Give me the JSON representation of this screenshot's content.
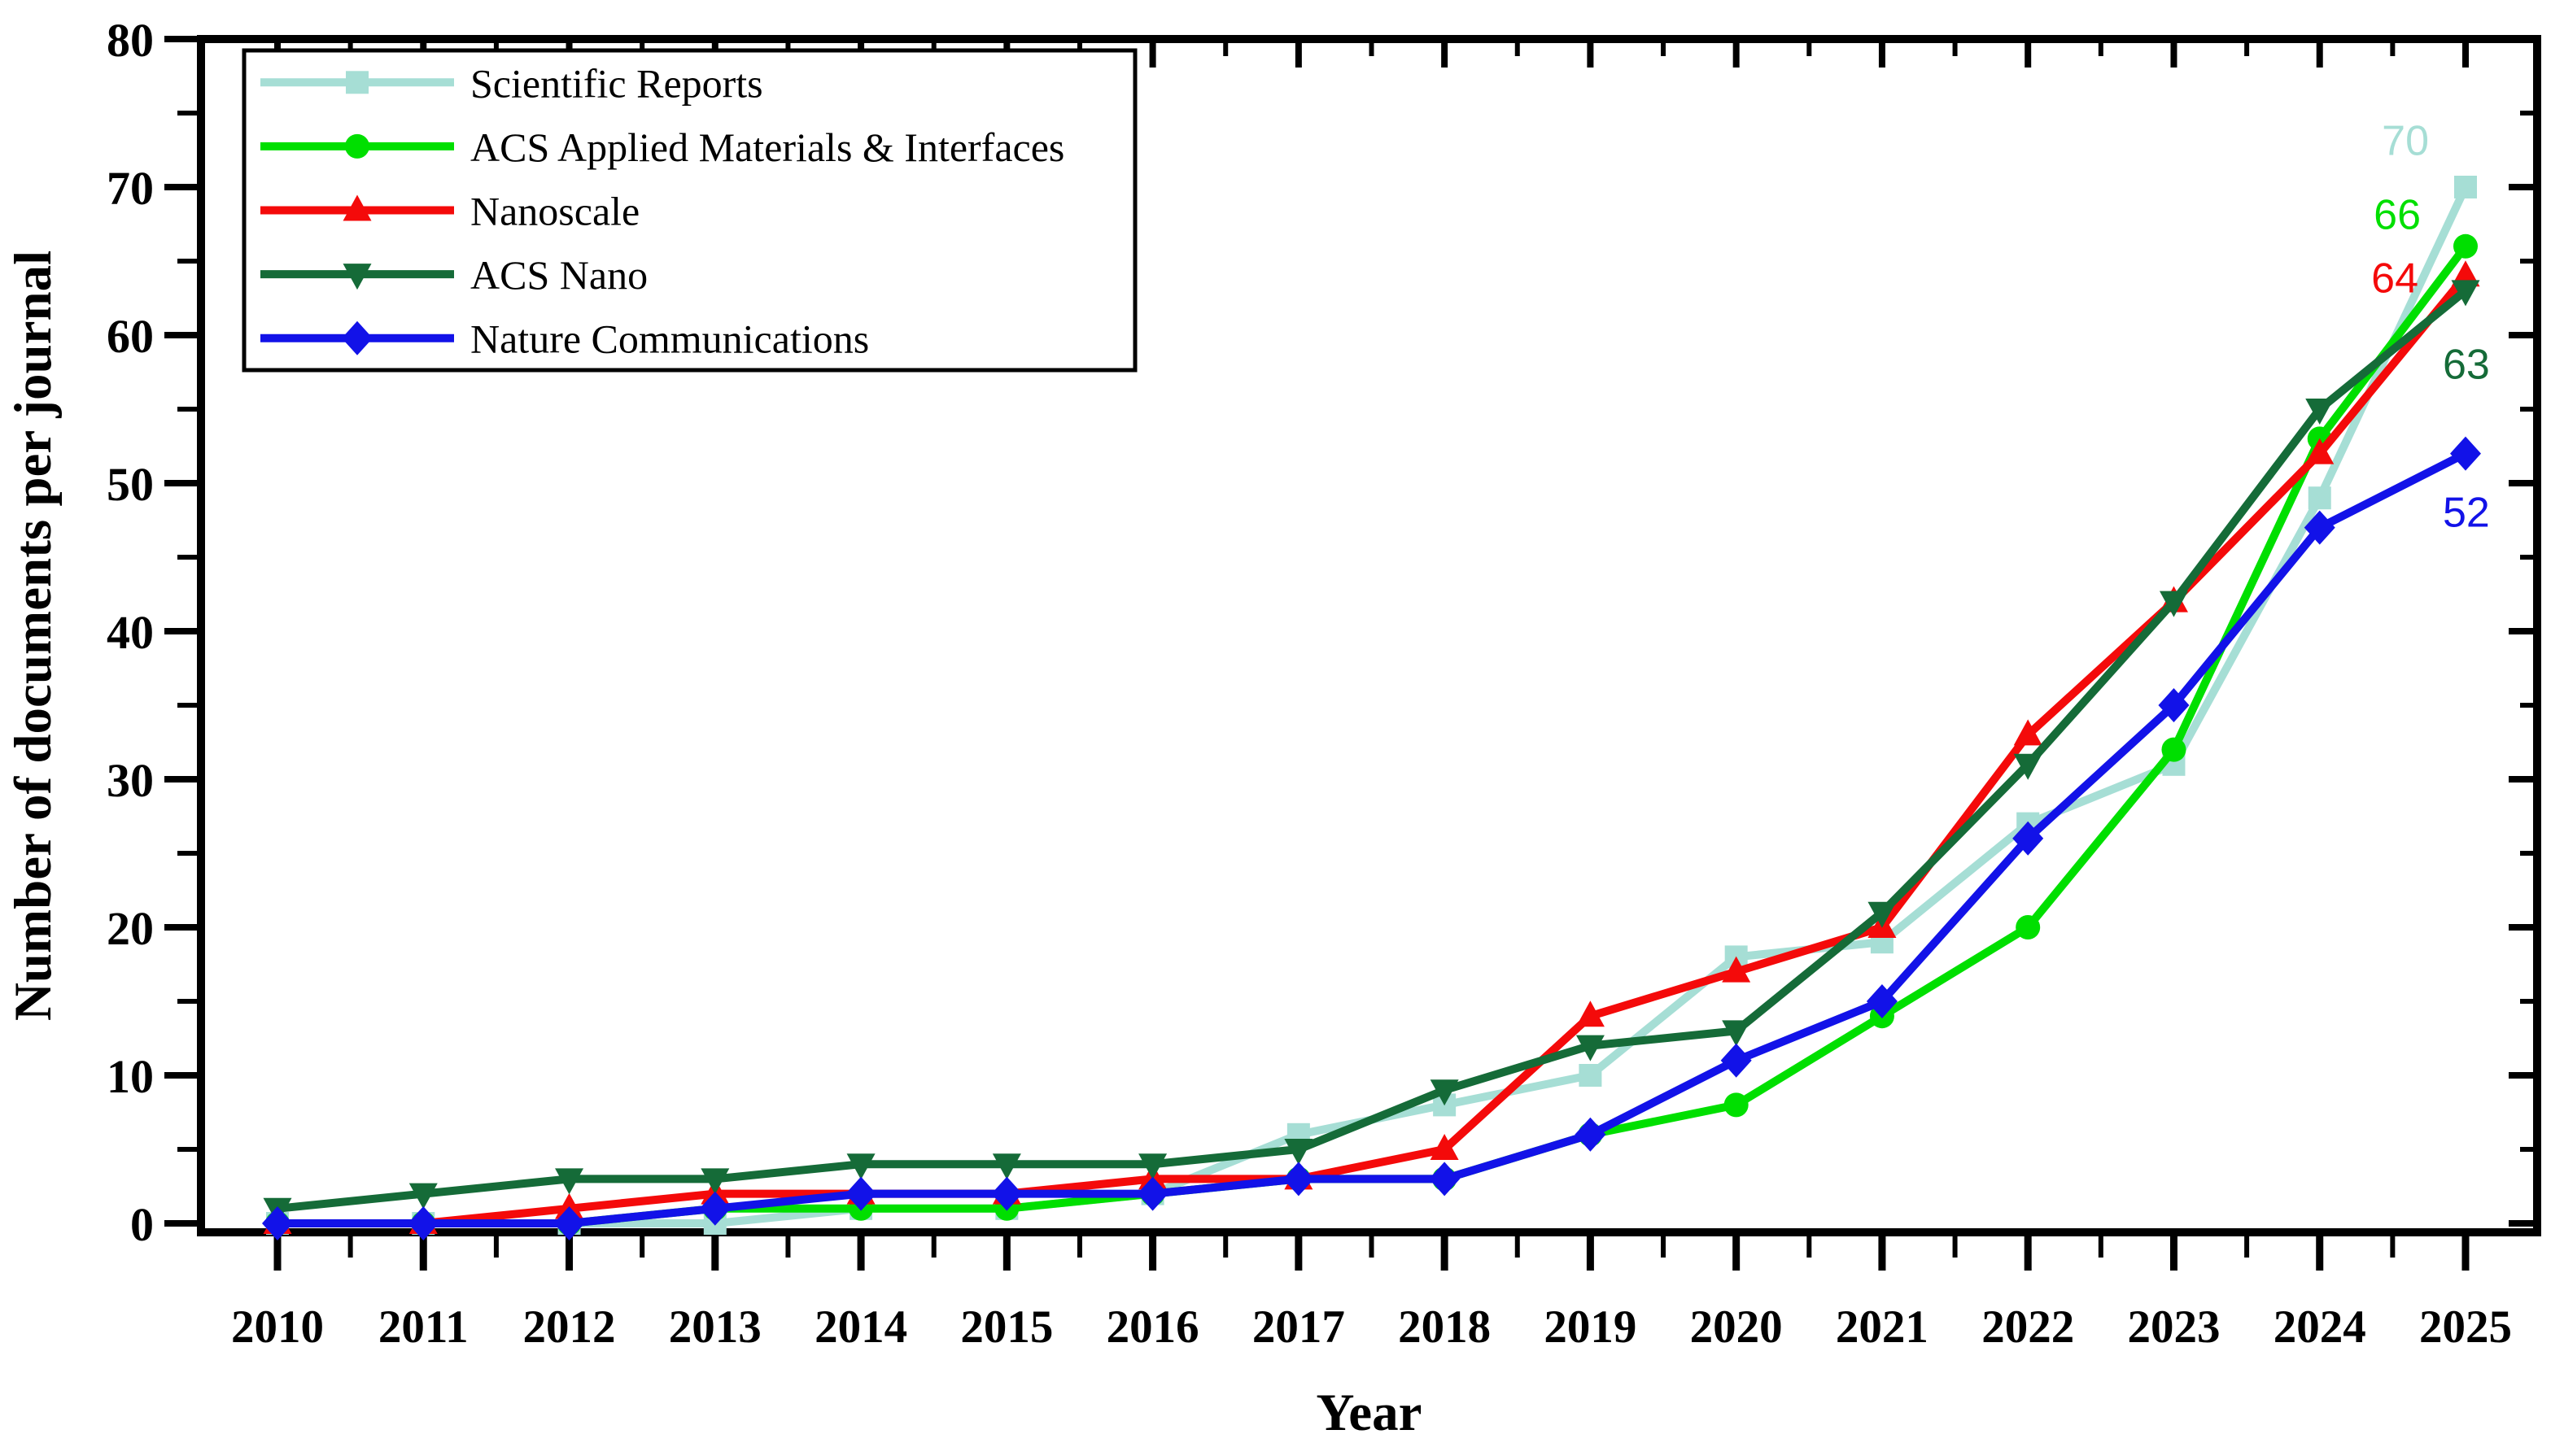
{
  "chart_data": {
    "type": "line",
    "title": "",
    "xlabel": "Year",
    "ylabel": "Number of documents per journal",
    "x": [
      2010,
      2011,
      2012,
      2013,
      2014,
      2015,
      2016,
      2017,
      2018,
      2019,
      2020,
      2021,
      2022,
      2023,
      2024,
      2025
    ],
    "xlim": [
      2010,
      2025
    ],
    "ylim": [
      0,
      80
    ],
    "y_major_ticks": [
      0,
      10,
      20,
      30,
      40,
      50,
      60,
      70,
      80
    ],
    "y_minor_step": 5,
    "grid": "off",
    "legend_position": "top-left",
    "series": [
      {
        "name": "Scientific Reports",
        "color": "#A6DED5",
        "marker": "square",
        "values": [
          0,
          0,
          0,
          0,
          1,
          1,
          2,
          6,
          8,
          10,
          18,
          19,
          27,
          31,
          49,
          70
        ],
        "end_label": "70"
      },
      {
        "name": "ACS Applied Materials & Interfaces",
        "color": "#00DF00",
        "marker": "circle",
        "values": [
          0,
          0,
          0,
          1,
          1,
          1,
          2,
          3,
          3,
          6,
          8,
          14,
          20,
          32,
          53,
          66
        ],
        "end_label": "66"
      },
      {
        "name": "Nanoscale",
        "color": "#F40A0A",
        "marker": "triangle-up",
        "values": [
          0,
          0,
          1,
          2,
          2,
          2,
          3,
          3,
          5,
          14,
          17,
          20,
          33,
          42,
          52,
          64
        ],
        "end_label": "64"
      },
      {
        "name": "ACS Nano",
        "color": "#156B38",
        "marker": "triangle-down",
        "values": [
          1,
          2,
          3,
          3,
          4,
          4,
          4,
          5,
          9,
          12,
          13,
          21,
          31,
          42,
          55,
          63
        ],
        "end_label": "63"
      },
      {
        "name": "Nature Communications",
        "color": "#1212E8",
        "marker": "diamond",
        "values": [
          0,
          0,
          0,
          1,
          2,
          2,
          2,
          3,
          3,
          6,
          11,
          15,
          26,
          35,
          47,
          52
        ],
        "end_label": "52"
      }
    ]
  }
}
